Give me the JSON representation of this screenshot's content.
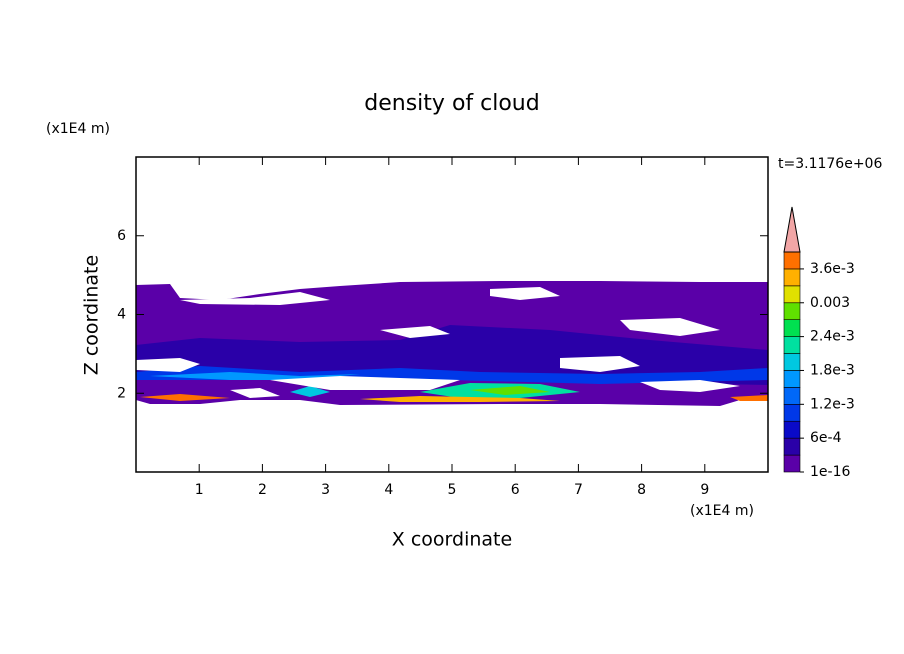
{
  "chart_data": {
    "type": "contour",
    "title": "density of cloud",
    "x_label": "X coordinate",
    "y_label": "Z coordinate",
    "x_unit": "(x1E4 m)",
    "y_unit": "(x1E4 m)",
    "annotation": "t=3.1176e+06",
    "xlim": [
      0,
      10
    ],
    "ylim": [
      0,
      8
    ],
    "xticks": [
      1,
      2,
      3,
      4,
      5,
      6,
      7,
      8,
      9
    ],
    "yticks": [
      2,
      4,
      6
    ],
    "colorbar": {
      "levels": [
        1e-16,
        0.0003,
        0.0006,
        0.0009,
        0.0012,
        0.0015,
        0.0018,
        0.0021,
        0.0024,
        0.0027,
        0.003,
        0.0033,
        0.0036,
        0.0039
      ],
      "colors": [
        "#5a00a8",
        "#2a00a8",
        "#0a0ac8",
        "#0038e8",
        "#0068f8",
        "#0098ff",
        "#00c8e0",
        "#00e0a0",
        "#00e050",
        "#60e000",
        "#e0e000",
        "#ffb000",
        "#ff7000"
      ],
      "extend_color": "#f2a6a6",
      "ticks": [
        1e-16,
        {
          "value": 0.0006,
          "label": "6e-4"
        },
        {
          "value": 0.0012,
          "label": "1.2e-3"
        },
        {
          "value": 0.0018,
          "label": "1.8e-3"
        },
        {
          "value": 0.0024,
          "label": "2.4e-3"
        },
        0.003,
        {
          "value": 0.0036,
          "label": "3.6e-3"
        }
      ]
    }
  }
}
